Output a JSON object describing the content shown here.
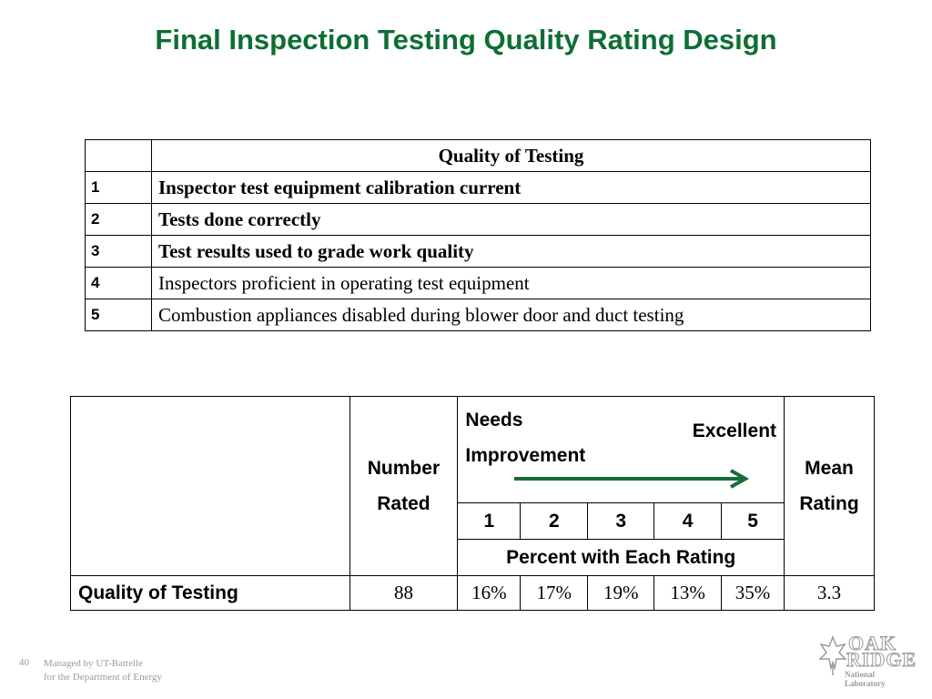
{
  "title": "Final Inspection Testing Quality Rating Design",
  "criteria_table": {
    "header": "Quality of Testing",
    "rows": [
      {
        "num": "1",
        "text": "Inspector test equipment calibration current",
        "bold": true
      },
      {
        "num": "2",
        "text": "Tests done correctly",
        "bold": true
      },
      {
        "num": "3",
        "text": "Test results used to grade work quality",
        "bold": true
      },
      {
        "num": "4",
        "text": "Inspectors proficient in operating test equipment",
        "bold": false
      },
      {
        "num": "5",
        "text": "Combustion appliances disabled during blower door and duct testing",
        "bold": false
      }
    ]
  },
  "rating_table": {
    "number_rated_line1": "Number",
    "number_rated_line2": "Rated",
    "needs_line1": "Needs",
    "needs_line2": "Improvement",
    "excellent": "Excellent",
    "mean_line1": "Mean",
    "mean_line2": "Rating",
    "scale": [
      "1",
      "2",
      "3",
      "4",
      "5"
    ],
    "percent_label": "Percent with Each Rating",
    "row": {
      "label": "Quality of Testing",
      "number_rated": "88",
      "percents": [
        "16%",
        "17%",
        "19%",
        "13%",
        "35%"
      ],
      "mean": "3.3"
    },
    "arrow_color": "#1a6b3a"
  },
  "footer": {
    "page_number": "40",
    "line1": "Managed by UT-Battelle",
    "line2": "for the Department of Energy",
    "logo_word1": "OAK",
    "logo_word2": "RIDGE",
    "logo_sub": "National Laboratory"
  },
  "colors": {
    "title": "#0e6e33",
    "footer": "#9a9a9a"
  }
}
